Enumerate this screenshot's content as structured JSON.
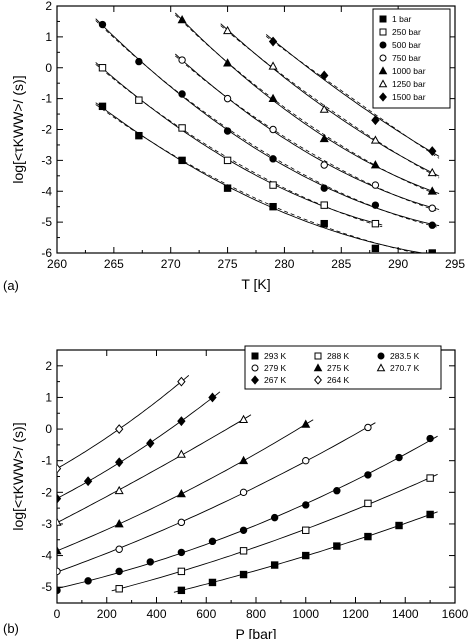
{
  "chart_data": [
    {
      "type": "scatter",
      "panel_label": "(a)",
      "xlabel": "T [K]",
      "ylabel": "log[<τKWW>/ (s)]",
      "xlim": [
        260,
        295
      ],
      "ylim": [
        -6,
        2
      ],
      "xticks": [
        "260",
        "265",
        "270",
        "275",
        "280",
        "285",
        "290",
        "295"
      ],
      "yticks": [
        "-6",
        "-5",
        "-4",
        "-3",
        "-2",
        "-1",
        "0",
        "1",
        "2"
      ],
      "legend": {
        "placement": "top-right"
      },
      "series": [
        {
          "name": "1 bar",
          "marker": "square-filled",
          "x": [
            264,
            267.2,
            271,
            275,
            279,
            283.5,
            288,
            293
          ],
          "y": [
            -1.25,
            -2.2,
            -3.0,
            -3.9,
            -4.5,
            -5.05,
            -5.85,
            -6.0
          ]
        },
        {
          "name": "250 bar",
          "marker": "square-open",
          "x": [
            264,
            267.2,
            271,
            275,
            279,
            283.5,
            288
          ],
          "y": [
            0.0,
            -1.05,
            -1.95,
            -3.0,
            -3.8,
            -4.45,
            -5.05
          ]
        },
        {
          "name": "500 bar",
          "marker": "circle-filled",
          "x": [
            264,
            267.2,
            271,
            275,
            279,
            283.5,
            288,
            293
          ],
          "y": [
            1.4,
            0.2,
            -0.85,
            -2.05,
            -2.95,
            -3.9,
            -4.45,
            -5.1
          ]
        },
        {
          "name": "750 bar",
          "marker": "circle-open",
          "x": [
            271,
            275,
            279,
            283.5,
            288,
            293
          ],
          "y": [
            0.25,
            -1.0,
            -2.0,
            -3.15,
            -3.8,
            -4.55
          ]
        },
        {
          "name": "1000 bar",
          "marker": "triangle-filled",
          "x": [
            271,
            275,
            279,
            283.5,
            288,
            293
          ],
          "y": [
            1.55,
            0.15,
            -1.0,
            -2.3,
            -3.15,
            -4.0
          ]
        },
        {
          "name": "1250 bar",
          "marker": "triangle-open",
          "x": [
            275,
            279,
            283.5,
            288,
            293
          ],
          "y": [
            1.2,
            0.05,
            -1.35,
            -2.35,
            -3.4
          ]
        },
        {
          "name": "1500 bar",
          "marker": "diamond-filled",
          "x": [
            279,
            283.5,
            288,
            293
          ],
          "y": [
            0.85,
            -0.25,
            -1.7,
            -2.7
          ]
        }
      ]
    },
    {
      "type": "scatter",
      "panel_label": "(b)",
      "xlabel": "P [bar]",
      "ylabel": "log[<τKWW>/ (s)]",
      "xlim": [
        0,
        1600
      ],
      "ylim": [
        -5.5,
        2.5
      ],
      "xticks": [
        "0",
        "200",
        "400",
        "600",
        "800",
        "1000",
        "1200",
        "1400",
        "1600"
      ],
      "yticks": [
        "-5",
        "-4",
        "-3",
        "-2",
        "-1",
        "0",
        "1",
        "2"
      ],
      "legend": {
        "placement": "top-right"
      },
      "series": [
        {
          "name": "293 K",
          "marker": "square-filled",
          "x": [
            500,
            625,
            750,
            875,
            1000,
            1125,
            1250,
            1375,
            1500
          ],
          "y": [
            -5.1,
            -4.85,
            -4.6,
            -4.3,
            -4.0,
            -3.7,
            -3.4,
            -3.05,
            -2.7
          ]
        },
        {
          "name": "288 K",
          "marker": "square-open",
          "x": [
            250,
            500,
            750,
            1000,
            1250,
            1500
          ],
          "y": [
            -5.05,
            -4.5,
            -3.85,
            -3.2,
            -2.35,
            -1.55
          ]
        },
        {
          "name": "283.5 K",
          "marker": "circle-filled",
          "x": [
            0,
            125,
            250,
            375,
            500,
            625,
            750,
            875,
            1000,
            1125,
            1250,
            1375,
            1500
          ],
          "y": [
            -5.1,
            -4.8,
            -4.5,
            -4.2,
            -3.9,
            -3.55,
            -3.2,
            -2.8,
            -2.4,
            -1.95,
            -1.45,
            -0.9,
            -0.3
          ]
        },
        {
          "name": "279 K",
          "marker": "circle-open",
          "x": [
            0,
            250,
            500,
            750,
            1000,
            1250
          ],
          "y": [
            -4.5,
            -3.8,
            -2.95,
            -2.0,
            -1.0,
            0.05
          ]
        },
        {
          "name": "275 K",
          "marker": "triangle-filled",
          "x": [
            0,
            250,
            500,
            750,
            1000
          ],
          "y": [
            -3.85,
            -3.0,
            -2.05,
            -1.0,
            0.15
          ]
        },
        {
          "name": "270.7 K",
          "marker": "triangle-open",
          "x": [
            0,
            250,
            500,
            750
          ],
          "y": [
            -2.95,
            -1.95,
            -0.8,
            0.3
          ]
        },
        {
          "name": "267 K",
          "marker": "diamond-filled",
          "x": [
            0,
            125,
            250,
            375,
            500,
            625
          ],
          "y": [
            -2.2,
            -1.65,
            -1.05,
            -0.45,
            0.25,
            1.0
          ]
        },
        {
          "name": "264 K",
          "marker": "diamond-open",
          "x": [
            0,
            250,
            500
          ],
          "y": [
            -1.25,
            0.0,
            1.5
          ]
        }
      ]
    }
  ]
}
